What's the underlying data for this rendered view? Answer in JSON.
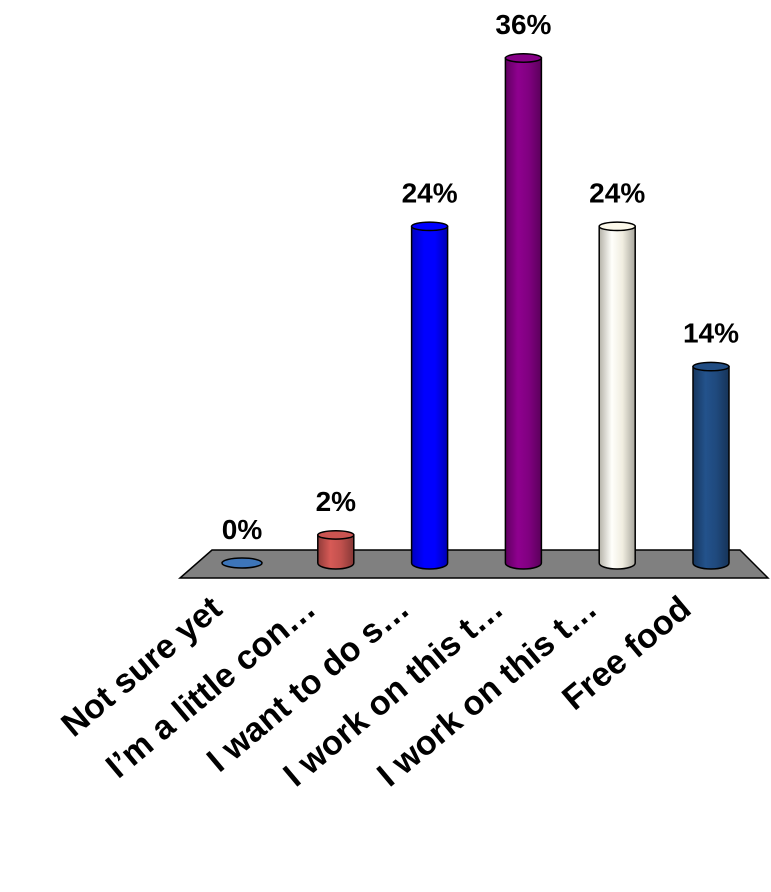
{
  "chart_data": {
    "type": "bar",
    "categories": [
      "Not sure yet",
      "I’m a little con…",
      "I want to do s…",
      "I work on this t…",
      "I work on this t…",
      "Free food"
    ],
    "values": [
      0,
      2,
      24,
      36,
      24,
      14
    ],
    "value_labels": [
      "0%",
      "2%",
      "24%",
      "36%",
      "24%",
      "14%"
    ],
    "unit": "%",
    "ylim": [
      0,
      36
    ],
    "grid": false,
    "legend": "none",
    "colors": [
      "#3a6fb0",
      "#c0504d",
      "#0000ff",
      "#800080",
      "#f0ede0",
      "#1f497d"
    ],
    "floor_color": "#808080"
  }
}
